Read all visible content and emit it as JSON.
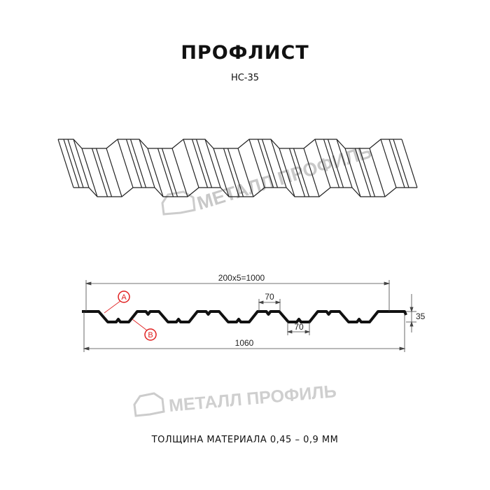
{
  "header": {
    "title": "ПРОФЛИСТ",
    "model": "НС-35"
  },
  "watermark": {
    "text": "МЕТАЛЛ ПРОФИЛЬ"
  },
  "drawing": {
    "dimensions": {
      "useful_width": "200x5=1000",
      "total_width": "1060",
      "height": "35",
      "top_flange": "70",
      "bottom_flange": "70"
    },
    "markers": [
      "A",
      "B"
    ],
    "accent_color": "#e02020"
  },
  "footer": {
    "thickness": "ТОЛЩИНА МАТЕРИАЛА 0,45 – 0,9 ММ"
  }
}
